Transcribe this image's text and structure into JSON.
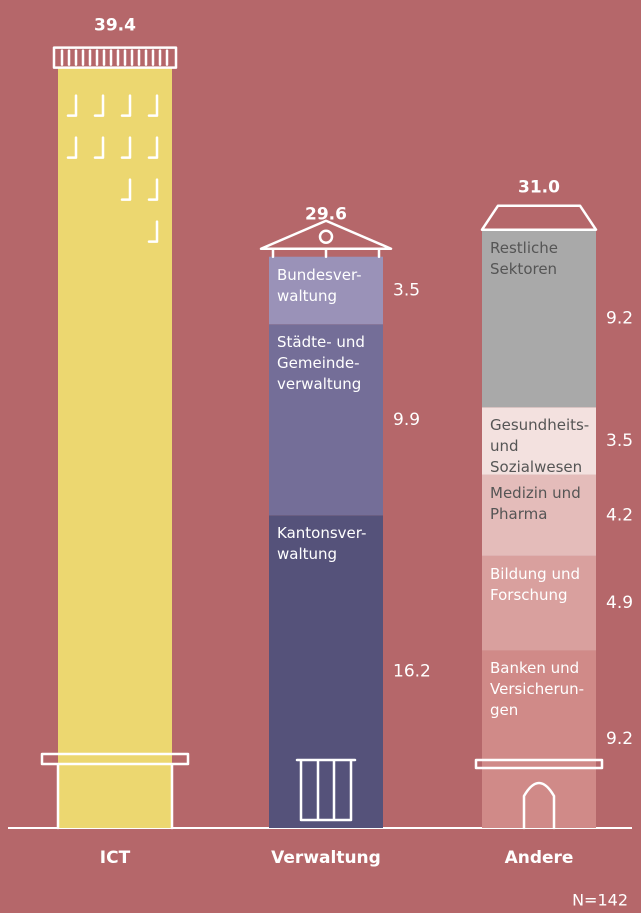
{
  "chart_data": {
    "type": "stacked-bar",
    "categories": [
      "ICT",
      "Verwaltung",
      "Andere"
    ],
    "totals": [
      39.4,
      29.6,
      31
    ],
    "total_labels": [
      "39.4",
      "29.6",
      "31.0"
    ],
    "stacks": [
      [
        {
          "value": 39.4,
          "color": "#ecd770"
        }
      ],
      [
        {
          "name": "Kantonsver-\nwaltung",
          "value": 16.2,
          "color": "#55527a"
        },
        {
          "name": "Städte- und\nGemeinde-\nverwaltung",
          "value": 9.9,
          "color": "#746e98"
        },
        {
          "name": "Bundesver-\nwaltung",
          "value": 3.5,
          "color": "#9a92b8"
        }
      ],
      [
        {
          "name": "Banken und\nVersicherun-\ngen",
          "value": 9.2,
          "color": "#d08a88"
        },
        {
          "name": "Bildung und\nForschung",
          "value": 4.9,
          "color": "#d9a09e"
        },
        {
          "name": "Medizin und\nPharma",
          "value": 4.2,
          "color": "#e4bcba"
        },
        {
          "name": "Gesundheits-\nund\nSozialwesen",
          "value": 3.5,
          "color": "#f3e1df"
        },
        {
          "name": "Restliche\nSektoren",
          "value": 9.2,
          "color": "#a9a9a9"
        }
      ]
    ],
    "note": "N=142"
  }
}
